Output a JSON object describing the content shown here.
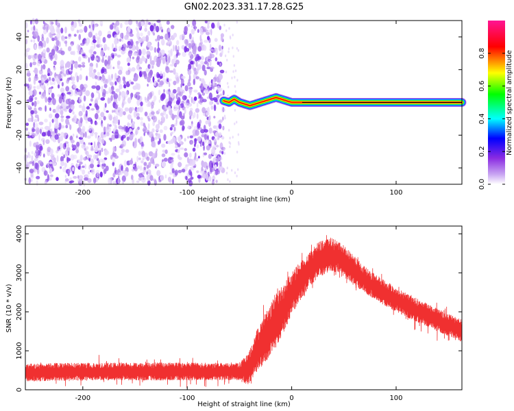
{
  "figure_title": "GN02.2023.331.17.28.G25",
  "colors": {
    "snr_line": "#f03030",
    "axes": "#000000",
    "background": "#ffffff"
  },
  "chart_data": [
    {
      "type": "heatmap",
      "title": "",
      "xlabel": "Height of straight line (km)",
      "ylabel": "Frequency (Hz)",
      "xlim": [
        -255,
        163
      ],
      "ylim": [
        -50,
        50
      ],
      "x_ticks": [
        -200,
        -100,
        0,
        100
      ],
      "y_ticks": [
        -40,
        -20,
        0,
        20,
        40
      ],
      "grid": false,
      "noise_region_x": [
        -255,
        -65
      ],
      "trace": {
        "x": [
          -65,
          -60,
          -55,
          -50,
          -45,
          -40,
          -35,
          -30,
          -25,
          -20,
          -15,
          -10,
          -5,
          0,
          10,
          50,
          100,
          163
        ],
        "y": [
          1,
          0,
          2,
          0,
          -1,
          -2,
          -1,
          0,
          1,
          2,
          3,
          2,
          1,
          0,
          0,
          0,
          0,
          0
        ]
      },
      "colorbar": {
        "label": "Normalized spectral amplitude",
        "range": [
          0,
          1
        ],
        "ticks": [
          "0.0",
          "0.2",
          "0.4",
          "0.6",
          "0.8"
        ],
        "colormap": [
          "#ffffff",
          "#8a2be2",
          "#0000ff",
          "#00ffff",
          "#00ff00",
          "#ffff00",
          "#ff0000",
          "#ff1493"
        ]
      }
    },
    {
      "type": "line",
      "title": "",
      "xlabel": "Height of straight line (km)",
      "ylabel": "SNR (10 * v/v)",
      "xlim": [
        -255,
        163
      ],
      "ylim": [
        0,
        4200
      ],
      "x_ticks": [
        -200,
        -100,
        0,
        100
      ],
      "y_ticks": [
        0,
        1000,
        2000,
        3000,
        4000
      ],
      "grid": false,
      "series": [
        {
          "envelope_x": [
            -255,
            -200,
            -150,
            -100,
            -50,
            -42,
            -35,
            -25,
            -15,
            -5,
            5,
            15,
            25,
            35,
            45,
            55,
            70,
            90,
            110,
            130,
            150,
            163
          ],
          "envelope_y": [
            430,
            460,
            460,
            460,
            460,
            500,
            900,
            1300,
            1750,
            2200,
            2650,
            3000,
            3300,
            3450,
            3400,
            3150,
            2800,
            2450,
            2150,
            1900,
            1650,
            1500
          ],
          "noise_amplitude_y": [
            200,
            200,
            200,
            200,
            200,
            350,
            450,
            550,
            600,
            550,
            450,
            400,
            400,
            400,
            350,
            350,
            300,
            280,
            270,
            260,
            250,
            250
          ]
        }
      ]
    }
  ]
}
